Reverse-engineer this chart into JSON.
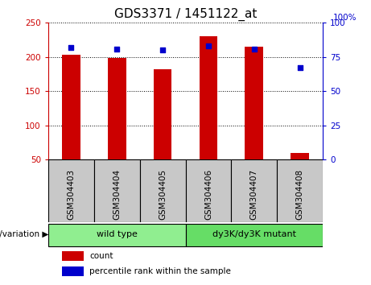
{
  "title": "GDS3371 / 1451122_at",
  "samples": [
    "GSM304403",
    "GSM304404",
    "GSM304405",
    "GSM304406",
    "GSM304407",
    "GSM304408"
  ],
  "counts": [
    203,
    198,
    182,
    230,
    215,
    60
  ],
  "percentiles": [
    82,
    81,
    80,
    83,
    81,
    67
  ],
  "bar_bottom": 50,
  "ylim_left": [
    50,
    250
  ],
  "yticks_left": [
    50,
    100,
    150,
    200,
    250
  ],
  "ylim_right": [
    0,
    100
  ],
  "yticks_right": [
    0,
    25,
    50,
    75,
    100
  ],
  "bar_color": "#cc0000",
  "dot_color": "#0000cc",
  "groups": [
    {
      "label": "wild type",
      "indices": [
        0,
        1,
        2
      ],
      "color": "#90ee90"
    },
    {
      "label": "dy3K/dy3K mutant",
      "indices": [
        3,
        4,
        5
      ],
      "color": "#66dd66"
    }
  ],
  "group_label": "genotype/variation",
  "legend_count_label": "count",
  "legend_percentile_label": "percentile rank within the sample",
  "title_fontsize": 11,
  "tick_label_fontsize": 7.5,
  "left_axis_color": "#cc0000",
  "right_axis_color": "#0000cc",
  "background_color": "#ffffff",
  "xlabel_area_color": "#c8c8c8",
  "right_axis_label": "100%"
}
